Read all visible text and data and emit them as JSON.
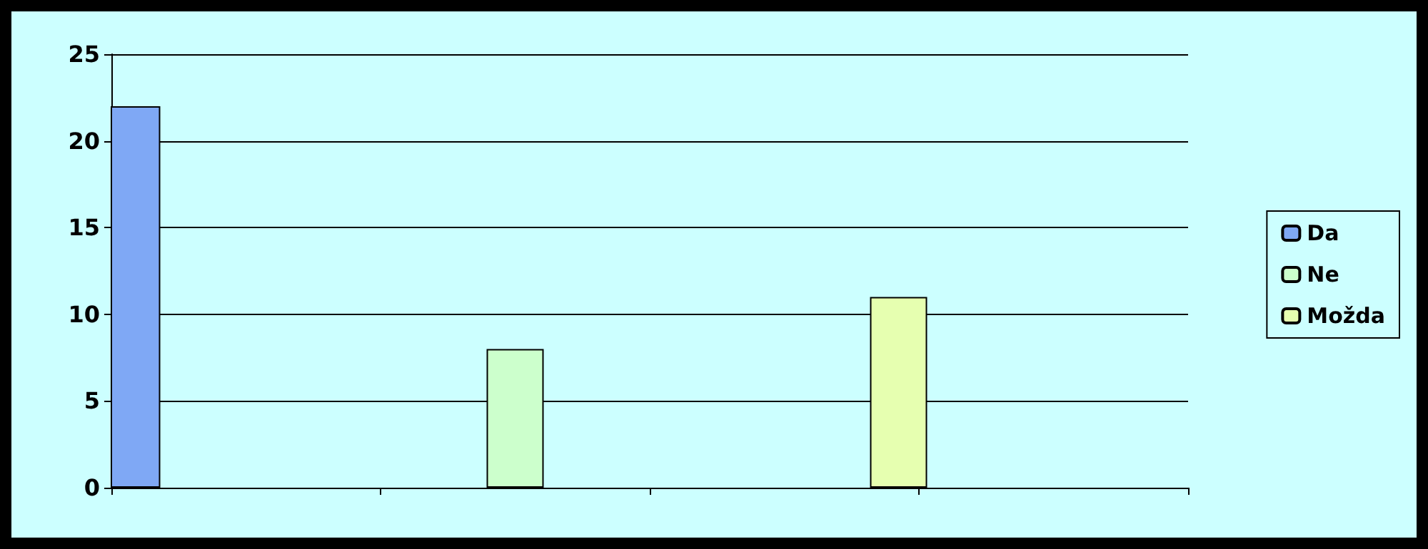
{
  "chart_data": {
    "type": "bar",
    "categories": [
      null,
      null,
      null,
      null
    ],
    "series": [
      {
        "name": "Da",
        "color": "#7fa8f5",
        "values": [
          22,
          null,
          null,
          null
        ]
      },
      {
        "name": "Ne",
        "color": "#ccffcc",
        "values": [
          null,
          8,
          null,
          null
        ]
      },
      {
        "name": "Možda",
        "color": "#e6ffb0",
        "values": [
          null,
          null,
          11,
          null
        ]
      }
    ],
    "ylim": [
      0,
      25
    ],
    "yticks": [
      0,
      5,
      10,
      15,
      20,
      25
    ],
    "grid": "y",
    "legend": "right"
  }
}
